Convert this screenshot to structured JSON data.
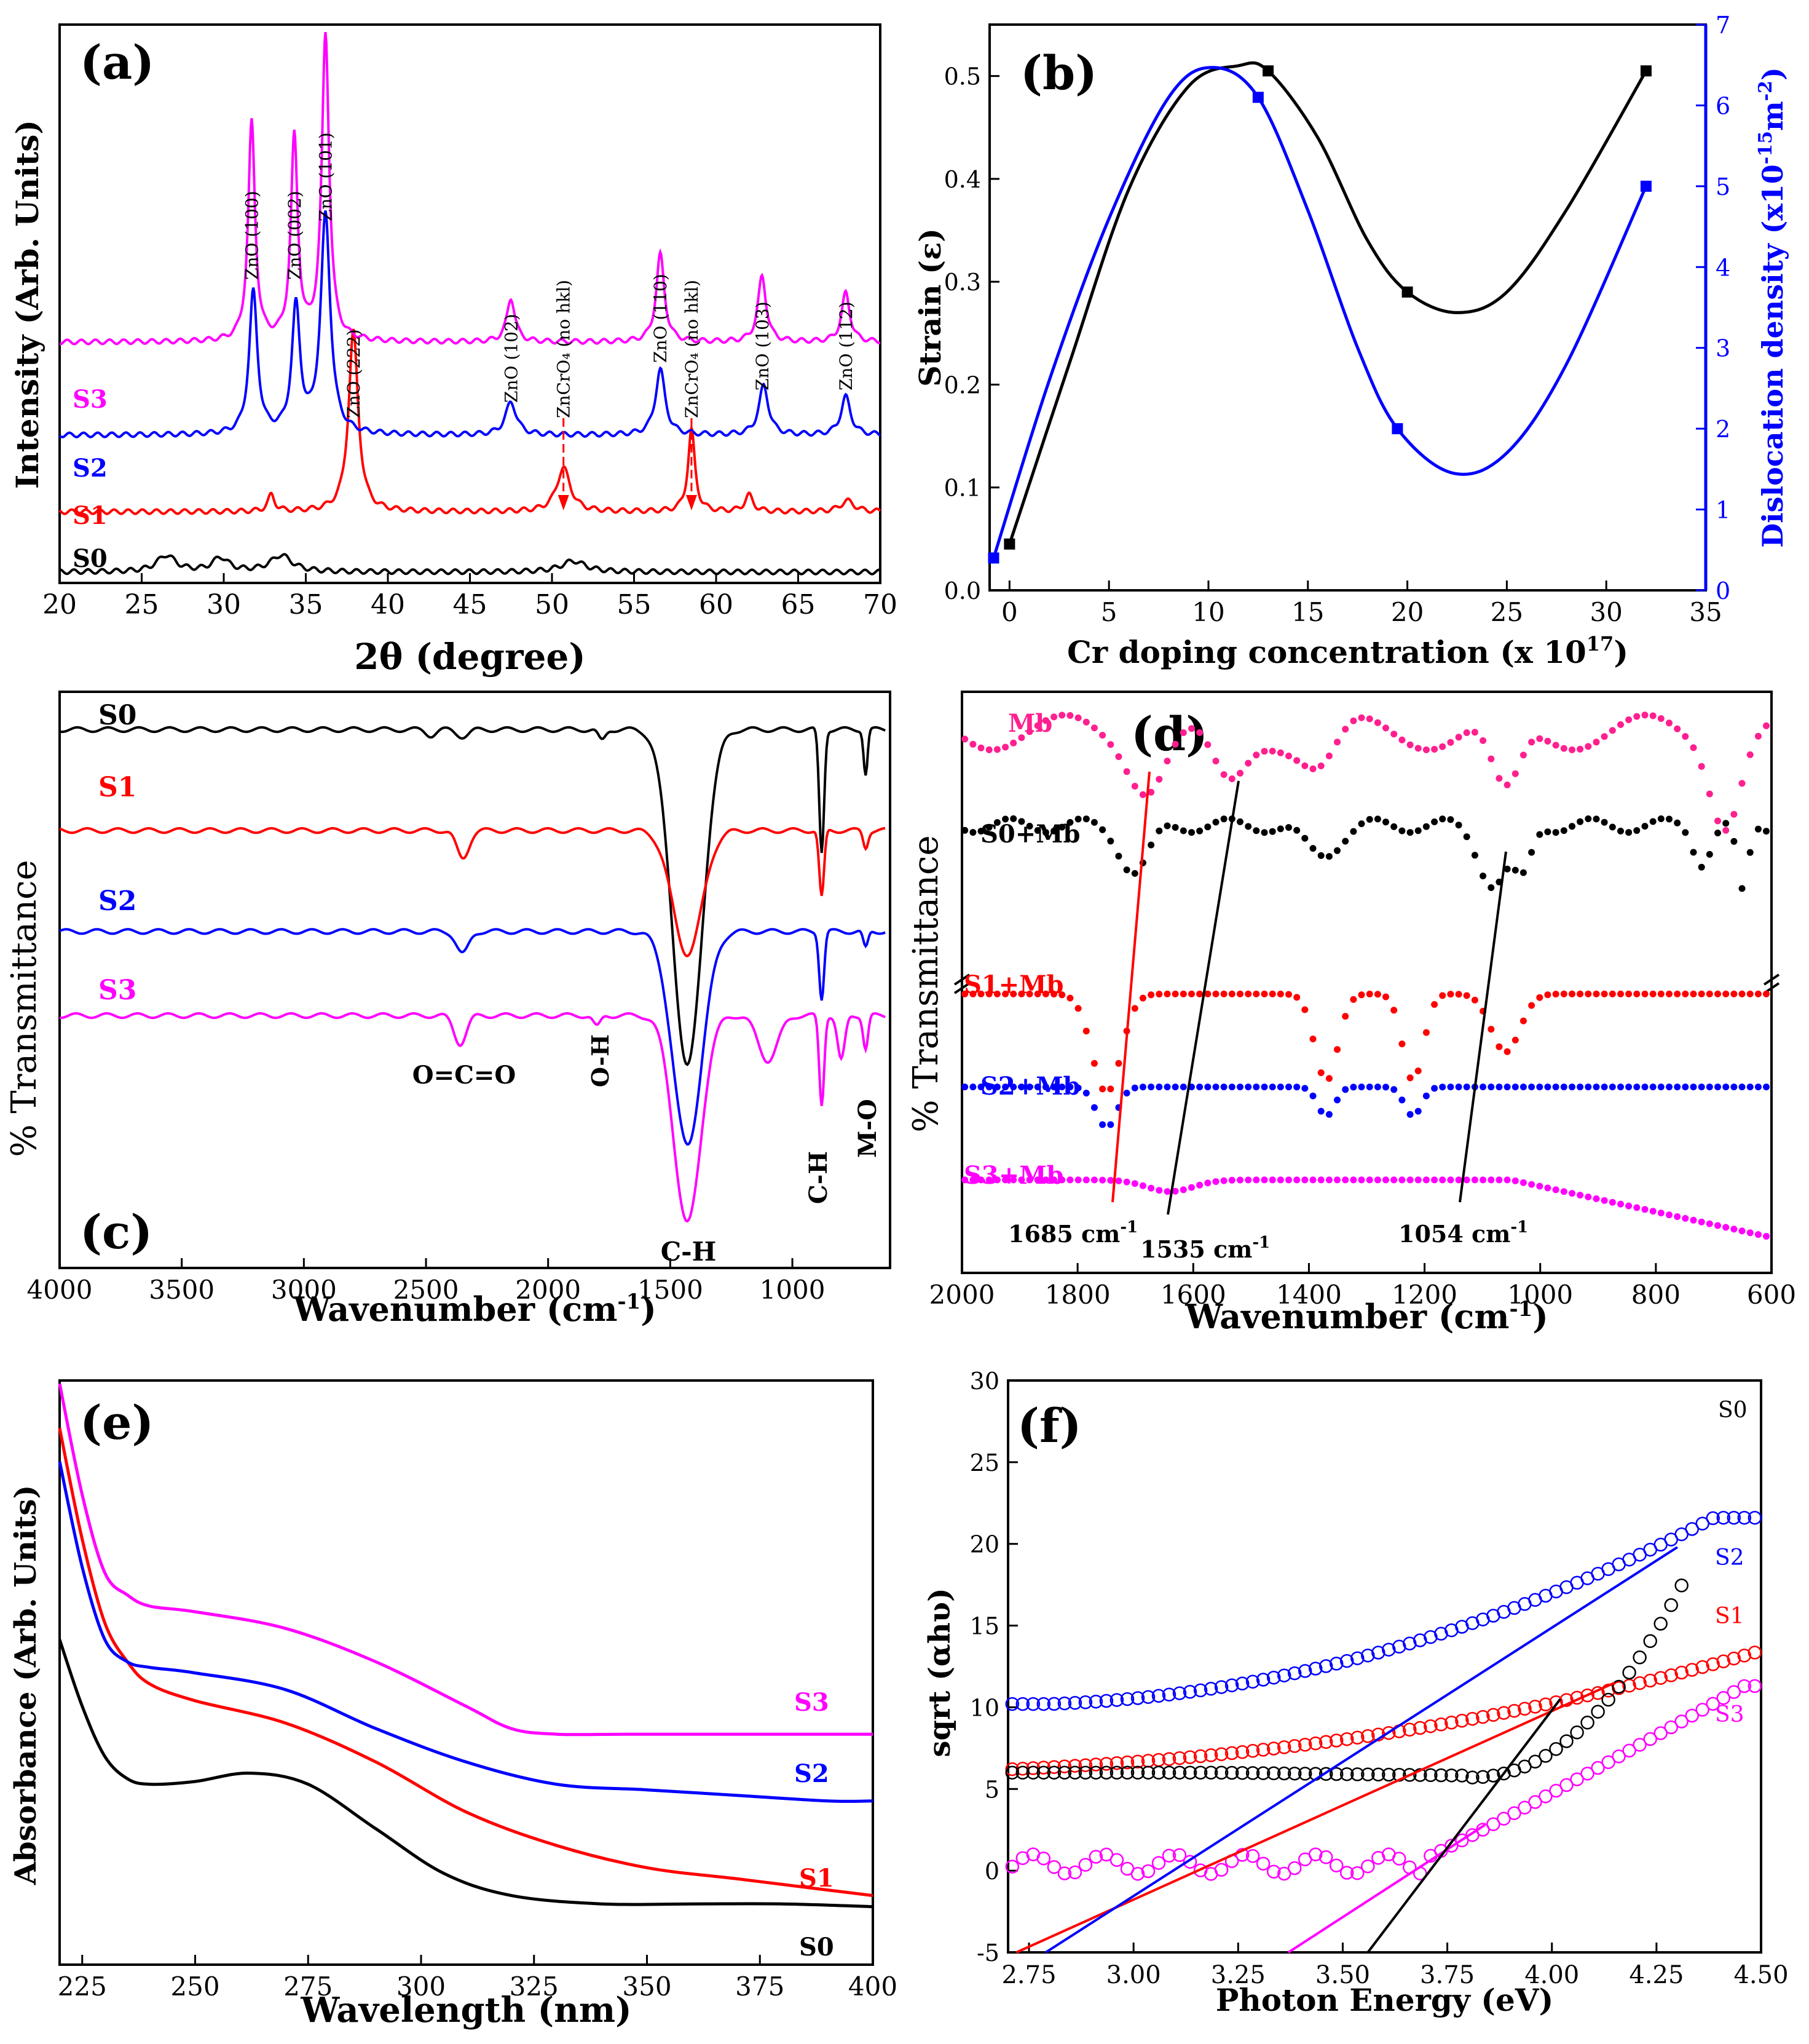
{
  "chart_data": [
    {
      "panel": "(a)",
      "type": "line",
      "xlabel": "2θ (degree)",
      "ylabel": "Intensity (Arb. Units)",
      "xlim": [
        20,
        70
      ],
      "x_ticks": [
        "20",
        "25",
        "30",
        "35",
        "40",
        "45",
        "50",
        "55",
        "60",
        "65",
        "70"
      ],
      "colors": {
        "S0": "#000000",
        "S1": "#ff0000",
        "S2": "#0000ff",
        "S3": "#ff00ff"
      },
      "series": [
        {
          "name": "S0",
          "offset": 0.02,
          "base": 0.02,
          "peaks": [
            [
              26.5,
              0.03,
              0.7
            ],
            [
              29.8,
              0.025,
              0.6
            ],
            [
              33.5,
              0.03,
              0.8
            ],
            [
              51.3,
              0.02,
              0.9
            ]
          ]
        },
        {
          "name": "S1",
          "offset": 0.13,
          "base": 0.13,
          "peaks": [
            [
              32.9,
              0.03,
              0.25
            ],
            [
              37.9,
              0.33,
              0.35
            ],
            [
              50.7,
              0.08,
              0.5
            ],
            [
              58.5,
              0.15,
              0.25
            ],
            [
              62.0,
              0.03,
              0.3
            ],
            [
              68.0,
              0.02,
              0.5
            ]
          ]
        },
        {
          "name": "S2",
          "offset": 0.27,
          "base": 0.27,
          "peaks": [
            [
              31.8,
              0.26,
              0.3
            ],
            [
              34.4,
              0.23,
              0.3
            ],
            [
              36.2,
              0.4,
              0.35
            ],
            [
              47.5,
              0.06,
              0.4
            ],
            [
              56.6,
              0.12,
              0.35
            ],
            [
              62.9,
              0.09,
              0.35
            ],
            [
              67.9,
              0.07,
              0.35
            ]
          ]
        },
        {
          "name": "S3",
          "offset": 0.44,
          "base": 0.44,
          "peaks": [
            [
              31.7,
              0.4,
              0.25
            ],
            [
              34.3,
              0.37,
              0.25
            ],
            [
              36.2,
              0.56,
              0.27
            ],
            [
              47.5,
              0.08,
              0.3
            ],
            [
              56.6,
              0.16,
              0.3
            ],
            [
              62.8,
              0.12,
              0.3
            ],
            [
              67.9,
              0.09,
              0.3
            ]
          ]
        }
      ],
      "sample_labels": [
        "S0",
        "S1",
        "S2",
        "S3"
      ],
      "peak_labels": [
        {
          "text": "ZnO (100)",
          "x": 31.7
        },
        {
          "text": "ZnO (002)",
          "x": 34.3
        },
        {
          "text": "ZnO (101)",
          "x": 36.2
        },
        {
          "text": "ZnO (222)",
          "x": 37.9
        },
        {
          "text": "ZnO (102)",
          "x": 47.5
        },
        {
          "text": "ZnCrO₄ (no hkl)",
          "x": 50.7
        },
        {
          "text": "ZnO (110)",
          "x": 56.6
        },
        {
          "text": "ZnCrO₄ (no hkl)",
          "x": 58.5
        },
        {
          "text": "ZnO (103)",
          "x": 62.8
        },
        {
          "text": "ZnO (112)",
          "x": 67.9
        }
      ]
    },
    {
      "panel": "(b)",
      "type": "line",
      "xlabel": "Cr doping concentration (x 10",
      "xlabel_sup": "17",
      "xlabel_end": ")",
      "ylabel": "Strain (ε)",
      "ylabel_right": "Dislocation density (x10",
      "ylabel_right_sup": "-15",
      "ylabel_right_unit": "m",
      "ylabel_right_sup2": "-2",
      "ylabel_right_end": ")",
      "xlim": [
        -1,
        35
      ],
      "ylim": [
        0,
        0.55
      ],
      "ylim_right": [
        0,
        7
      ],
      "x_ticks": [
        "0",
        "5",
        "10",
        "15",
        "20",
        "25",
        "30",
        "35"
      ],
      "y_ticks": [
        "0.0",
        "0.1",
        "0.2",
        "0.3",
        "0.4",
        "0.5"
      ],
      "y_ticks_right": [
        "0",
        "1",
        "2",
        "3",
        "4",
        "5",
        "6",
        "7"
      ],
      "series": [
        {
          "name": "Strain",
          "axis": "left",
          "color": "#000000",
          "x": [
            0,
            13,
            20,
            32
          ],
          "y": [
            0.045,
            0.505,
            0.29,
            0.505
          ]
        },
        {
          "name": "Dislocation density",
          "axis": "right",
          "color": "#0000ff",
          "x": [
            -0.8,
            12.5,
            19.5,
            32
          ],
          "y": [
            0.4,
            6.1,
            2.0,
            5.0
          ]
        }
      ]
    },
    {
      "panel": "(c)",
      "type": "line",
      "xlabel": "Wavenumber (cm",
      "xlabel_sup": "-1",
      "xlabel_end": ")",
      "ylabel": "% Transmittance",
      "xlim": [
        4000,
        600
      ],
      "x_ticks": [
        "4000",
        "3500",
        "3000",
        "2500",
        "2000",
        "1500",
        "1000"
      ],
      "series": [
        {
          "name": "S0",
          "color": "#000000",
          "base": 0.96,
          "dips": [
            [
              2480,
              0.01,
              20
            ],
            [
              2350,
              0.012,
              25
            ],
            [
              1780,
              0.02,
              15
            ],
            [
              1430,
              0.6,
              60
            ],
            [
              880,
              0.22,
              10
            ],
            [
              700,
              0.08,
              8
            ]
          ]
        },
        {
          "name": "S1",
          "color": "#ff0000",
          "base": 0.78,
          "dips": [
            [
              2350,
              0.05,
              25
            ],
            [
              1430,
              0.22,
              60
            ],
            [
              880,
              0.12,
              10
            ],
            [
              700,
              0.03,
              10
            ]
          ]
        },
        {
          "name": "S2",
          "color": "#0000ff",
          "base": 0.6,
          "dips": [
            [
              2350,
              0.04,
              25
            ],
            [
              1430,
              0.38,
              60
            ],
            [
              880,
              0.12,
              10
            ],
            [
              700,
              0.03,
              10
            ]
          ]
        },
        {
          "name": "S3",
          "color": "#ff00ff",
          "base": 0.45,
          "dips": [
            [
              2360,
              0.05,
              25
            ],
            [
              1800,
              0.02,
              15
            ],
            [
              1430,
              0.37,
              55
            ],
            [
              1100,
              0.08,
              40
            ],
            [
              880,
              0.16,
              10
            ],
            [
              800,
              0.08,
              15
            ],
            [
              700,
              0.06,
              10
            ]
          ]
        }
      ],
      "sample_labels": [
        "S0",
        "S1",
        "S2",
        "S3"
      ],
      "annotations": [
        "O=C=O",
        "O-H",
        "C-H",
        "C-H",
        "M-O"
      ]
    },
    {
      "panel": "(d)",
      "type": "scatter",
      "xlabel": "Wavenumber (cm",
      "xlabel_sup": "-1",
      "xlabel_end": ")",
      "ylabel": "% Transmittance",
      "xlim": [
        2000,
        600
      ],
      "x_ticks": [
        "2000",
        "1800",
        "1600",
        "1400",
        "1200",
        "1000",
        "800",
        "600"
      ],
      "series": [
        {
          "name": "Mb",
          "color": "#ff1f8f",
          "base": 0.93,
          "dips": [
            [
              1680,
              0.08,
              30
            ],
            [
              1540,
              0.1,
              30
            ],
            [
              1380,
              0.06,
              30
            ],
            [
              1060,
              0.12,
              25
            ],
            [
              680,
              0.14,
              25
            ]
          ]
        },
        {
          "name": "S0+Mb",
          "color": "#000000",
          "base": 0.77,
          "dips": [
            [
              1700,
              0.08,
              25
            ],
            [
              1380,
              0.05,
              30
            ],
            [
              1080,
              0.1,
              25
            ],
            [
              1030,
              0.08,
              15
            ],
            [
              720,
              0.06,
              15
            ],
            [
              650,
              0.12,
              10
            ]
          ]
        },
        {
          "name": "S1+Mb",
          "color": "#ff0000",
          "base": 0.48,
          "dips": [
            [
              1750,
              0.17,
              25
            ],
            [
              1370,
              0.15,
              20
            ],
            [
              1220,
              0.15,
              18
            ],
            [
              1060,
              0.1,
              25
            ]
          ]
        },
        {
          "name": "S2+Mb",
          "color": "#0000ff",
          "base": 0.32,
          "dips": [
            [
              1750,
              0.07,
              18
            ],
            [
              1370,
              0.05,
              15
            ],
            [
              1220,
              0.05,
              15
            ]
          ]
        },
        {
          "name": "S3+Mb",
          "color": "#ff00ff",
          "base": 0.16,
          "dips": [
            [
              1640,
              0.02,
              40
            ]
          ]
        }
      ],
      "sample_labels": [
        "Mb",
        "S0+Mb",
        "S1+Mb",
        "S2+Mb",
        "S3+Mb"
      ],
      "annotations": [
        "1685 cm",
        "1535 cm",
        "1054 cm"
      ],
      "annotation_sup": "-1"
    },
    {
      "panel": "(e)",
      "type": "line",
      "xlabel": "Wavelength (nm)",
      "ylabel": "Absorbance (Arb. Units)",
      "xlim": [
        220,
        400
      ],
      "x_ticks": [
        "225",
        "250",
        "275",
        "300",
        "325",
        "350",
        "375",
        "400"
      ],
      "series": [
        {
          "name": "S0",
          "color": "#000000",
          "x": [
            220,
            225,
            230,
            235,
            240,
            250,
            262,
            275,
            290,
            305,
            320,
            340,
            360,
            380,
            400
          ],
          "y": [
            0.54,
            0.42,
            0.33,
            0.29,
            0.28,
            0.285,
            0.3,
            0.28,
            0.2,
            0.12,
            0.08,
            0.065,
            0.065,
            0.065,
            0.06
          ]
        },
        {
          "name": "S1",
          "color": "#ff0000",
          "x": [
            220,
            225,
            230,
            235,
            240,
            250,
            270,
            290,
            310,
            330,
            350,
            370,
            390,
            400
          ],
          "y": [
            0.92,
            0.72,
            0.57,
            0.5,
            0.46,
            0.43,
            0.39,
            0.32,
            0.23,
            0.17,
            0.13,
            0.11,
            0.09,
            0.08
          ]
        },
        {
          "name": "S2",
          "color": "#0000ff",
          "x": [
            220,
            225,
            230,
            235,
            240,
            250,
            270,
            290,
            310,
            330,
            350,
            370,
            390,
            400
          ],
          "y": [
            0.86,
            0.67,
            0.54,
            0.5,
            0.49,
            0.48,
            0.45,
            0.38,
            0.32,
            0.28,
            0.27,
            0.26,
            0.25,
            0.25
          ]
        },
        {
          "name": "S3",
          "color": "#ff00ff",
          "x": [
            220,
            225,
            230,
            235,
            240,
            250,
            270,
            290,
            310,
            320,
            330,
            345,
            360,
            380,
            400
          ],
          "y": [
            1.0,
            0.8,
            0.66,
            0.62,
            0.6,
            0.59,
            0.56,
            0.5,
            0.42,
            0.38,
            0.37,
            0.37,
            0.37,
            0.37,
            0.37
          ]
        }
      ],
      "sample_labels": [
        "S3",
        "S2",
        "S1",
        "S0"
      ]
    },
    {
      "panel": "(f)",
      "type": "scatter",
      "xlabel": "Photon Energy (eV)",
      "ylabel": "sqrt (αhυ)",
      "xlim": [
        2.7,
        4.5
      ],
      "ylim": [
        -5,
        30
      ],
      "x_ticks": [
        "2.75",
        "3.00",
        "3.25",
        "3.50",
        "3.75",
        "4.00",
        "4.25",
        "4.50"
      ],
      "y_ticks": [
        "-5",
        "0",
        "5",
        "10",
        "15",
        "20",
        "25",
        "30"
      ],
      "series": [
        {
          "name": "S0",
          "color": "#000000",
          "shape": "S0"
        },
        {
          "name": "S1",
          "color": "#ff0000",
          "shape": "S1"
        },
        {
          "name": "S2",
          "color": "#0000ff",
          "shape": "S2"
        },
        {
          "name": "S3",
          "color": "#ff00ff",
          "shape": "S3"
        }
      ],
      "fit_lines": [
        {
          "color": "#ff0000",
          "x": [
            2.72,
            4.15
          ],
          "y": [
            -5,
            11.5
          ]
        },
        {
          "color": "#0000ff",
          "x": [
            2.79,
            4.3
          ],
          "y": [
            -5,
            19.8
          ]
        },
        {
          "color": "#ff00ff",
          "x": [
            3.37,
            3.84
          ],
          "y": [
            -5,
            2.8
          ]
        },
        {
          "color": "#000000",
          "x": [
            3.56,
            4.02
          ],
          "y": [
            -5,
            10.5
          ]
        }
      ],
      "sample_labels": [
        "S0",
        "S2",
        "S1",
        "S3"
      ]
    }
  ]
}
